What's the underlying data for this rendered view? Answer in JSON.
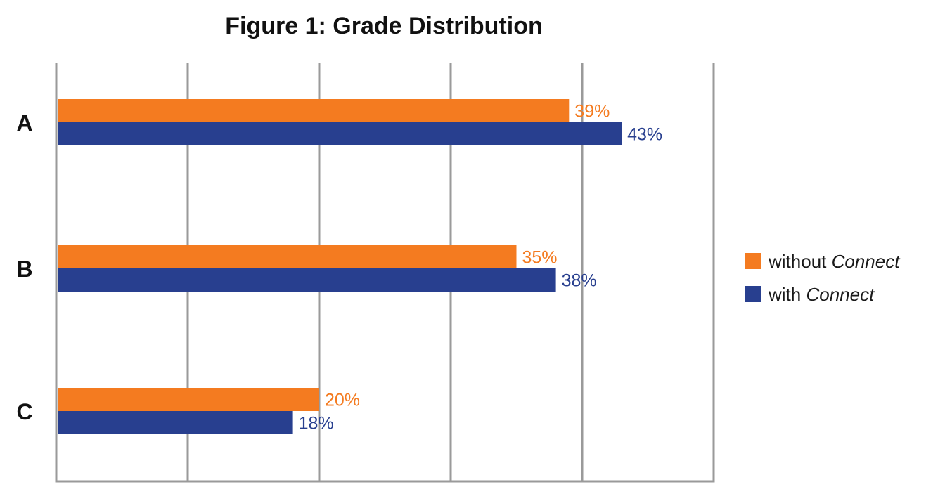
{
  "chart_data": {
    "type": "bar",
    "orientation": "horizontal",
    "title": "Figure 1: Grade Distribution",
    "categories": [
      "A",
      "B",
      "C"
    ],
    "series": [
      {
        "name": "without Connect",
        "legend_plain": "without ",
        "legend_italic": "Connect",
        "color": "#f47b20",
        "values": [
          39,
          35,
          20
        ],
        "labels": [
          "39%",
          "35%",
          "20%"
        ]
      },
      {
        "name": "with Connect",
        "legend_plain": "with ",
        "legend_italic": "Connect",
        "color": "#283f8f",
        "values": [
          43,
          38,
          18
        ],
        "labels": [
          "43%",
          "38%",
          "18%"
        ]
      }
    ],
    "xlim": [
      0,
      50
    ],
    "grid": true,
    "legend_position": "right"
  }
}
